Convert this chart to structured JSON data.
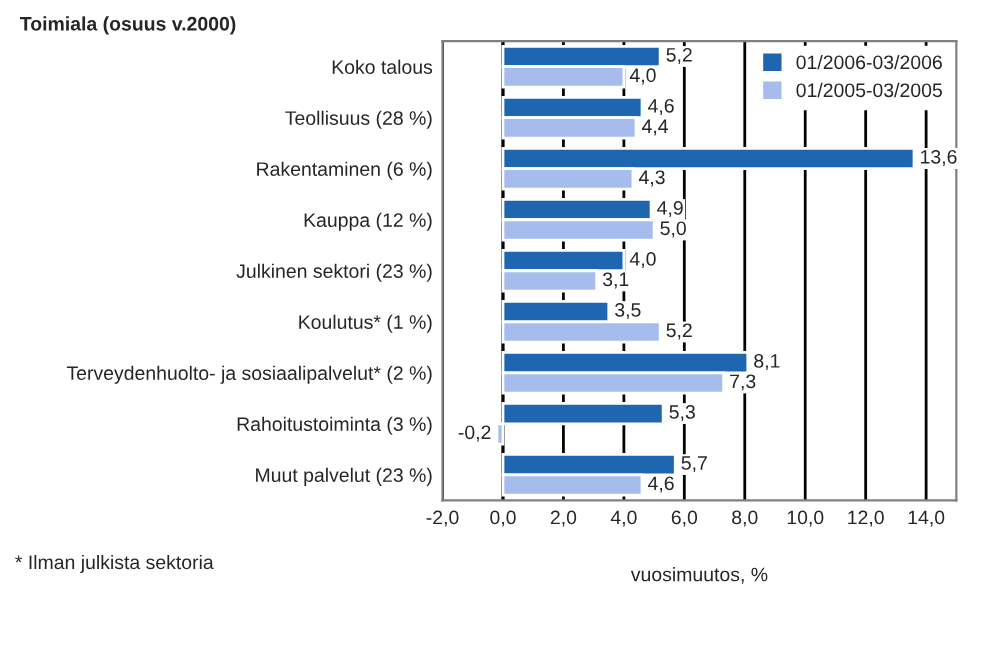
{
  "chart_data": {
    "type": "bar",
    "orientation": "horizontal",
    "title": "Toimiala (osuus v.2000)",
    "xlabel": "vuosimuutos, %",
    "annotations": [
      "* Ilman julkista sektoria"
    ],
    "categories": [
      "Koko talous",
      "Teollisuus (28 %)",
      "Rakentaminen (6 %)",
      "Kauppa (12 %)",
      "Julkinen sektori (23 %)",
      "Koulutus* (1 %)",
      "Terveydenhuolto- ja sosiaalipalvelut* (2 %)",
      "Rahoitustoiminta (3 %)",
      "Muut palvelut (23 %)"
    ],
    "series": [
      {
        "name": "01/2006-03/2006",
        "color": "#1f66b0",
        "values": [
          5.2,
          4.6,
          13.6,
          4.9,
          4.0,
          3.5,
          8.1,
          5.3,
          5.7
        ],
        "value_labels": [
          "5,2",
          "4,6",
          "13,6",
          "4,9",
          "4,0",
          "3,5",
          "8,1",
          "5,3",
          "5,7"
        ]
      },
      {
        "name": "01/2005-03/2005",
        "color": "#a6bcec",
        "values": [
          4.0,
          4.4,
          4.3,
          5.0,
          3.1,
          5.2,
          7.3,
          -0.2,
          4.6
        ],
        "value_labels": [
          "4,0",
          "4,4",
          "4,3",
          "5,0",
          "3,1",
          "5,2",
          "7,3",
          "-0,2",
          "4,6"
        ]
      }
    ],
    "xlim": [
      -2,
      15
    ],
    "xticks": [
      {
        "value": -2,
        "label": "-2,0"
      },
      {
        "value": 0,
        "label": "0,0"
      },
      {
        "value": 2,
        "label": "2,0"
      },
      {
        "value": 4,
        "label": "4,0"
      },
      {
        "value": 6,
        "label": "6,0"
      },
      {
        "value": 8,
        "label": "8,0"
      },
      {
        "value": 10,
        "label": "10,0"
      },
      {
        "value": 12,
        "label": "12,0"
      },
      {
        "value": 14,
        "label": "14,0"
      }
    ],
    "grid": "x",
    "legend": "top right"
  }
}
